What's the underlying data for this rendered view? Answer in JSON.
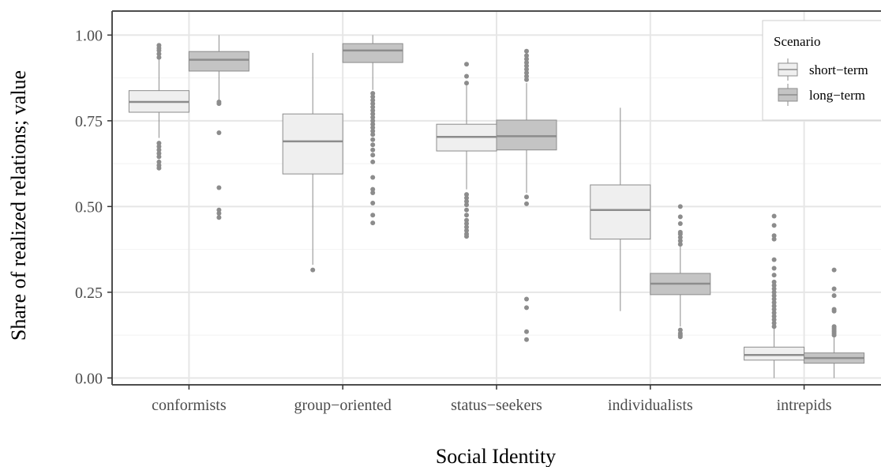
{
  "chart_data": {
    "type": "boxplot",
    "xlabel": "Social Identity",
    "ylabel": "Share of realized relations; value",
    "ylim": [
      -0.02,
      1.07
    ],
    "y_ticks": [
      "0.00",
      "0.25",
      "0.50",
      "0.75",
      "1.00"
    ],
    "categories": [
      "conformists",
      "group−oriented",
      "status−seekers",
      "individualists",
      "intrepids"
    ],
    "grid": true,
    "legend": {
      "title": "Scenario",
      "position": "top-right"
    },
    "series": [
      {
        "name": "short−term",
        "fill": "#efefef",
        "boxes": [
          {
            "category": "conformists",
            "whisker_low": 0.7,
            "q1": 0.775,
            "median": 0.805,
            "q3": 0.838,
            "whisker_high": 0.93,
            "outliers": [
              0.612,
              0.62,
              0.63,
              0.645,
              0.655,
              0.665,
              0.675,
              0.685,
              0.935,
              0.945,
              0.955,
              0.962,
              0.97
            ]
          },
          {
            "category": "group−oriented",
            "whisker_low": 0.33,
            "q1": 0.595,
            "median": 0.69,
            "q3": 0.77,
            "whisker_high": 0.948,
            "outliers": [
              0.315
            ]
          },
          {
            "category": "status−seekers",
            "whisker_low": 0.55,
            "q1": 0.662,
            "median": 0.703,
            "q3": 0.74,
            "whisker_high": 0.855,
            "outliers": [
              0.413,
              0.42,
              0.43,
              0.44,
              0.45,
              0.46,
              0.475,
              0.49,
              0.505,
              0.515,
              0.525,
              0.535,
              0.86,
              0.88,
              0.915
            ]
          },
          {
            "category": "individualists",
            "whisker_low": 0.195,
            "q1": 0.405,
            "median": 0.49,
            "q3": 0.563,
            "whisker_high": 0.788,
            "outliers": []
          },
          {
            "category": "intrepids",
            "whisker_low": 0.0,
            "q1": 0.052,
            "median": 0.067,
            "q3": 0.09,
            "whisker_high": 0.145,
            "outliers": [
              0.15,
              0.16,
              0.17,
              0.18,
              0.19,
              0.2,
              0.21,
              0.22,
              0.23,
              0.24,
              0.25,
              0.26,
              0.27,
              0.28,
              0.3,
              0.32,
              0.345,
              0.405,
              0.415,
              0.445,
              0.472
            ]
          }
        ]
      },
      {
        "name": "long−term",
        "fill": "#c4c4c4",
        "boxes": [
          {
            "category": "conformists",
            "whisker_low": 0.81,
            "q1": 0.895,
            "median": 0.928,
            "q3": 0.952,
            "whisker_high": 1.0,
            "outliers": [
              0.468,
              0.48,
              0.49,
              0.555,
              0.715,
              0.8,
              0.805
            ]
          },
          {
            "category": "group−oriented",
            "whisker_low": 0.84,
            "q1": 0.92,
            "median": 0.955,
            "q3": 0.975,
            "whisker_high": 1.0,
            "outliers": [
              0.452,
              0.475,
              0.51,
              0.54,
              0.55,
              0.585,
              0.63,
              0.65,
              0.665,
              0.68,
              0.695,
              0.71,
              0.72,
              0.73,
              0.74,
              0.75,
              0.76,
              0.77,
              0.78,
              0.79,
              0.8,
              0.81,
              0.82,
              0.83
            ]
          },
          {
            "category": "status−seekers",
            "whisker_low": 0.54,
            "q1": 0.665,
            "median": 0.705,
            "q3": 0.752,
            "whisker_high": 0.86,
            "outliers": [
              0.112,
              0.135,
              0.205,
              0.23,
              0.508,
              0.528,
              0.87,
              0.88,
              0.89,
              0.9,
              0.91,
              0.92,
              0.93,
              0.94,
              0.953
            ]
          },
          {
            "category": "individualists",
            "whisker_low": 0.15,
            "q1": 0.243,
            "median": 0.275,
            "q3": 0.305,
            "whisker_high": 0.385,
            "outliers": [
              0.12,
              0.125,
              0.13,
              0.14,
              0.39,
              0.4,
              0.41,
              0.42,
              0.425,
              0.45,
              0.47,
              0.5
            ]
          },
          {
            "category": "intrepids",
            "whisker_low": 0.0,
            "q1": 0.043,
            "median": 0.058,
            "q3": 0.073,
            "whisker_high": 0.118,
            "outliers": [
              0.125,
              0.13,
              0.135,
              0.14,
              0.145,
              0.15,
              0.195,
              0.2,
              0.24,
              0.26,
              0.315
            ]
          }
        ]
      }
    ]
  }
}
